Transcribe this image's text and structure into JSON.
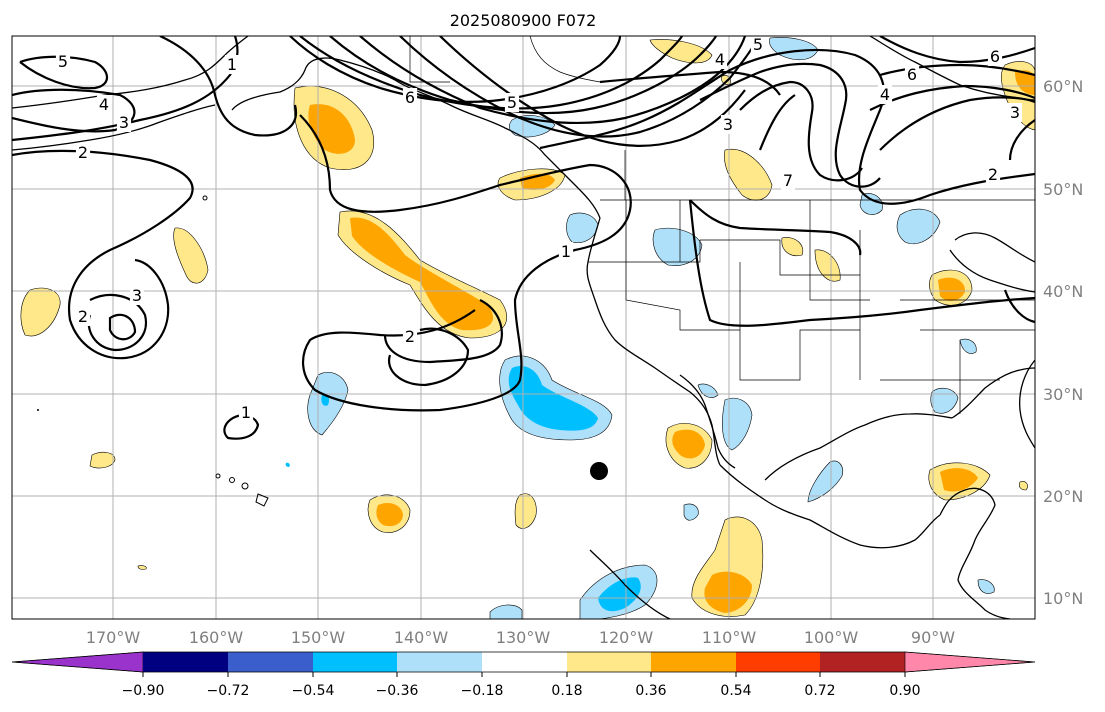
{
  "title": "2025080900 F072",
  "map": {
    "lon_labels": [
      "170°W",
      "160°W",
      "150°W",
      "140°W",
      "130°W",
      "120°W",
      "110°W",
      "100°W",
      "90°W"
    ],
    "lat_labels": [
      "60°N",
      "50°N",
      "40°N",
      "30°N",
      "20°N",
      "10°N"
    ],
    "gridlines": true,
    "contour_labels": [
      "5",
      "4",
      "3",
      "2",
      "1",
      "3",
      "2",
      "1",
      "2",
      "6",
      "5",
      "1",
      "5",
      "6",
      "3",
      "4",
      "7",
      "2",
      "6",
      "3",
      "4"
    ],
    "marker": "storm-center-dot"
  },
  "colorbar": {
    "tick_labels": [
      "−0.90",
      "−0.72",
      "−0.54",
      "−0.36",
      "−0.18",
      "0.18",
      "0.36",
      "0.54",
      "0.72",
      "0.90"
    ],
    "colors": [
      "#9933cc",
      "#000080",
      "#3a5fcd",
      "#00bfff",
      "#afe0fa",
      "#ffffff",
      "#ffe88a",
      "#ffa500",
      "#ff3d00",
      "#b22222",
      "#ff88aa"
    ]
  }
}
